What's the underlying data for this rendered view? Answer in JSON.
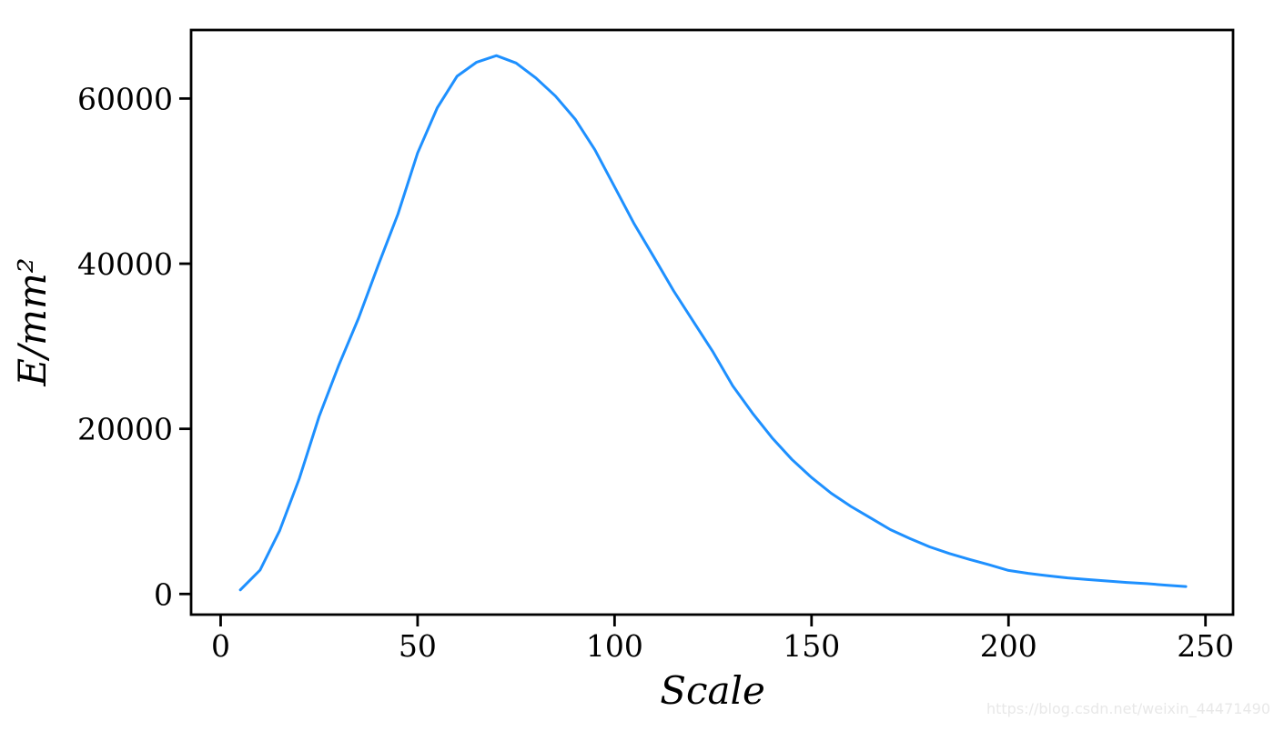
{
  "watermark": {
    "text": "https://blog.csdn.net/weixin_44471490",
    "color": "#e8e8e8"
  },
  "chart_data": {
    "type": "line",
    "title": "",
    "xlabel": "Scale",
    "ylabel": "E/mm²",
    "grid": false,
    "legend": null,
    "line_color": "#1E90FF",
    "spine_color": "#000000",
    "xlim": [
      -7.5,
      257
    ],
    "ylim": [
      -2500,
      68300
    ],
    "x_ticks": [
      0,
      50,
      100,
      150,
      200,
      250
    ],
    "y_ticks": [
      0,
      20000,
      40000,
      60000
    ],
    "x": [
      5,
      10,
      15,
      20,
      25,
      30,
      35,
      40,
      45,
      50,
      55,
      60,
      65,
      70,
      75,
      80,
      85,
      90,
      95,
      100,
      105,
      110,
      115,
      120,
      125,
      130,
      135,
      140,
      145,
      150,
      155,
      160,
      165,
      170,
      175,
      180,
      185,
      190,
      195,
      200,
      205,
      210,
      215,
      220,
      225,
      230,
      235,
      240,
      245
    ],
    "y": [
      500,
      2900,
      7700,
      14000,
      21500,
      27700,
      33400,
      39800,
      46000,
      53400,
      58900,
      62700,
      64400,
      65200,
      64300,
      62500,
      60300,
      57500,
      53800,
      49300,
      44800,
      40800,
      36700,
      33000,
      29300,
      25200,
      21900,
      18900,
      16300,
      14100,
      12200,
      10600,
      9200,
      7800,
      6700,
      5700,
      4900,
      4200,
      3550,
      2850,
      2500,
      2200,
      1950,
      1750,
      1570,
      1400,
      1250,
      1070,
      900
    ]
  }
}
